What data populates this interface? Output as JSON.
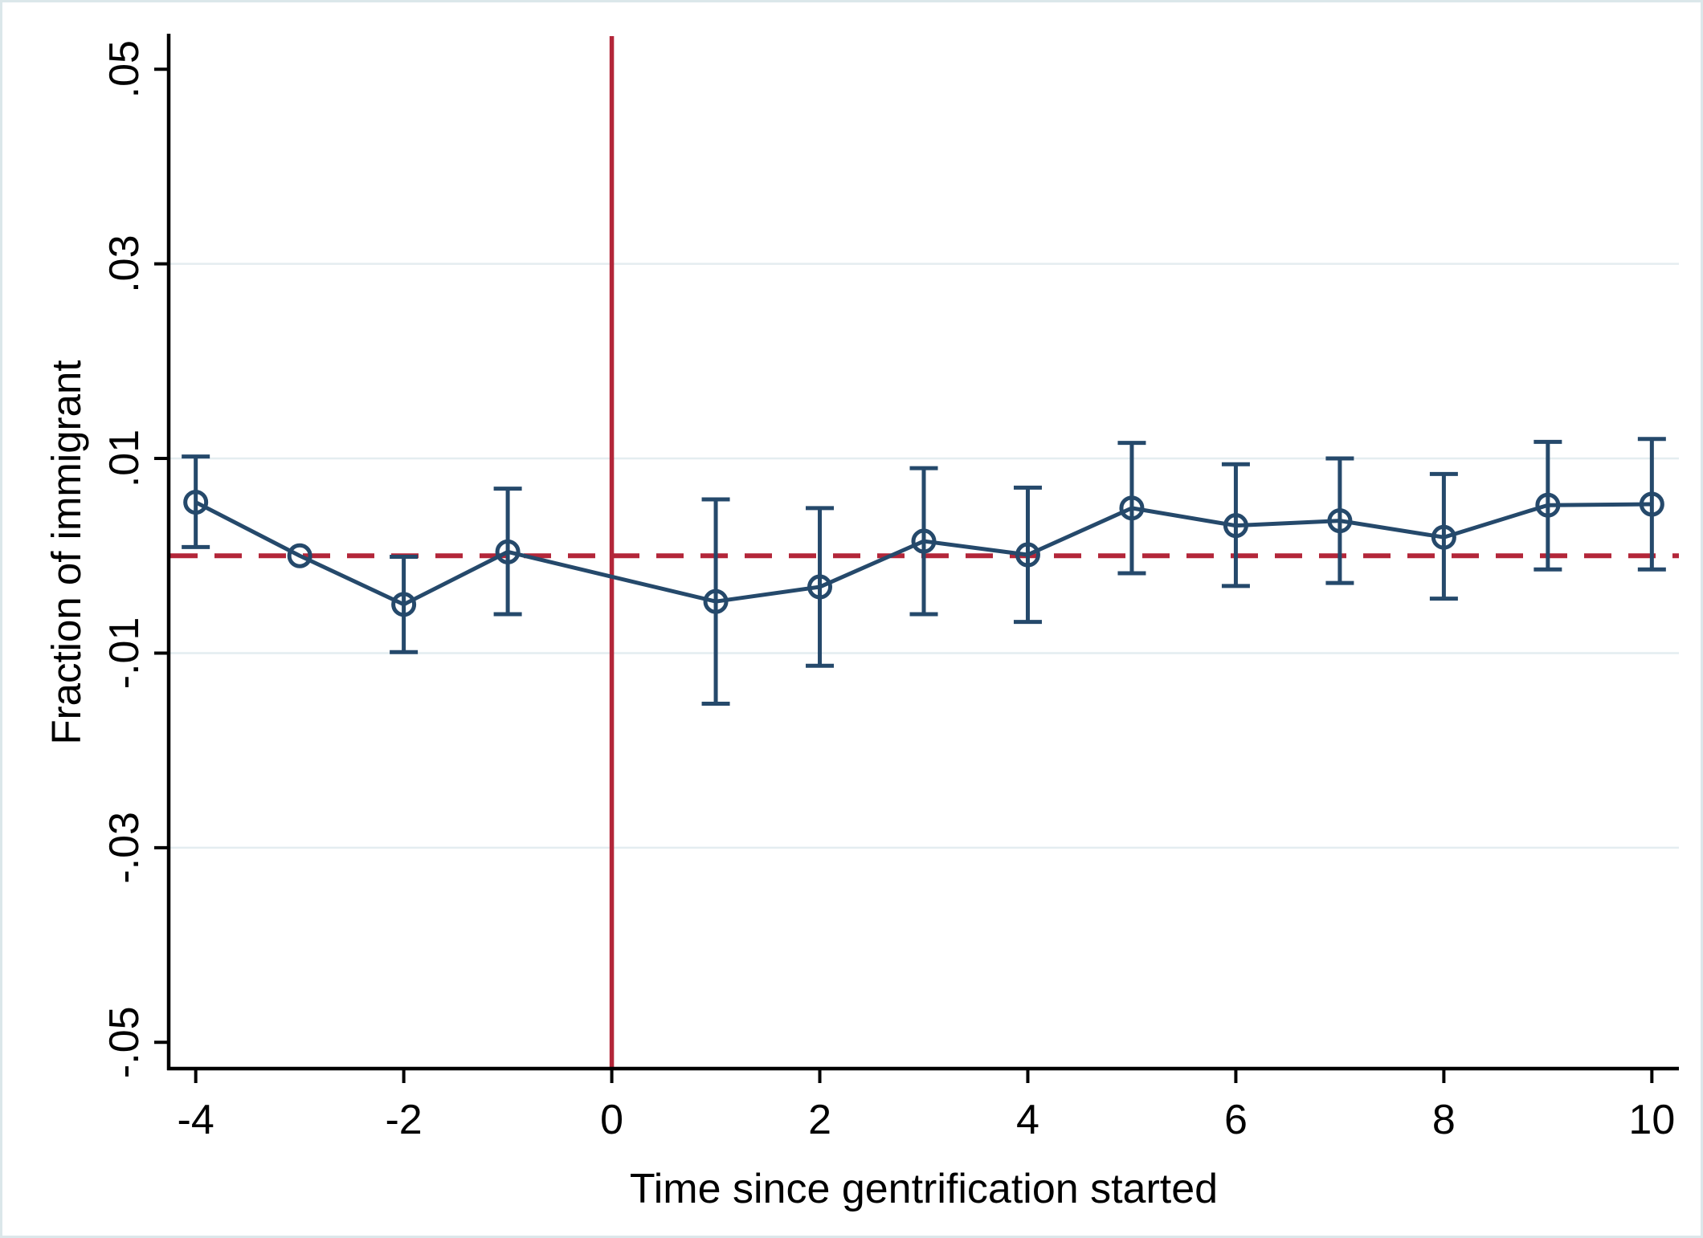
{
  "figure": {
    "background": "#ffffff",
    "frame_color": "#dbe7ea",
    "description": "Event-study plot of fraction of immigrant residents relative to gentrification start"
  },
  "chart_data": {
    "type": "scatter",
    "subtype": "event-study-errorbar",
    "title": "",
    "xlabel": "Time since gentrification started",
    "ylabel": "Fraction of immigrant",
    "xlim": [
      -4.26,
      10.26
    ],
    "ylim": [
      -0.0527,
      0.0534
    ],
    "x_ticks": [
      -4,
      -2,
      0,
      2,
      4,
      6,
      8,
      10
    ],
    "x_tick_labels": [
      "-4",
      "-2",
      "0",
      "2",
      "4",
      "6",
      "8",
      "10"
    ],
    "y_ticks": [
      0.05,
      0.03,
      0.01,
      -0.01,
      -0.03,
      -0.05
    ],
    "y_tick_labels": [
      ".05",
      ".03",
      ".01",
      "-.01",
      "-.03",
      "-.05"
    ],
    "grid_y_values": [
      0.03,
      0.01,
      -0.01,
      -0.03
    ],
    "grid": "horizontal-only",
    "legend_position": "none",
    "reference_vline_x": 0,
    "reference_hline_y": 0,
    "colors": {
      "series": "#25496b",
      "reference": "#b32639",
      "grid": "#e4edf0",
      "axis": "#000000"
    },
    "series": [
      {
        "name": "point-estimate-95ci",
        "marker": "circle-hollow",
        "connect": true,
        "points": [
          {
            "x": -4,
            "y": 0.0055,
            "ci_low": 0.0009,
            "ci_high": 0.0102
          },
          {
            "x": -3,
            "y": 0.0,
            "ci_low": null,
            "ci_high": null
          },
          {
            "x": -2,
            "y": -0.005,
            "ci_low": -0.0099,
            "ci_high": -0.0001
          },
          {
            "x": -1,
            "y": 0.0004,
            "ci_low": -0.006,
            "ci_high": 0.0069
          },
          {
            "x": 1,
            "y": -0.0047,
            "ci_low": -0.0152,
            "ci_high": 0.0058
          },
          {
            "x": 2,
            "y": -0.0032,
            "ci_low": -0.0113,
            "ci_high": 0.0049
          },
          {
            "x": 3,
            "y": 0.0015,
            "ci_low": -0.006,
            "ci_high": 0.009
          },
          {
            "x": 4,
            "y": 0.0001,
            "ci_low": -0.0068,
            "ci_high": 0.007
          },
          {
            "x": 5,
            "y": 0.0049,
            "ci_low": -0.0018,
            "ci_high": 0.0116
          },
          {
            "x": 6,
            "y": 0.0031,
            "ci_low": -0.0031,
            "ci_high": 0.0094
          },
          {
            "x": 7,
            "y": 0.0036,
            "ci_low": -0.0028,
            "ci_high": 0.01
          },
          {
            "x": 8,
            "y": 0.0019,
            "ci_low": -0.0044,
            "ci_high": 0.0084
          },
          {
            "x": 9,
            "y": 0.0052,
            "ci_low": -0.0014,
            "ci_high": 0.0117
          },
          {
            "x": 10,
            "y": 0.0053,
            "ci_low": -0.0014,
            "ci_high": 0.012
          }
        ]
      }
    ]
  }
}
